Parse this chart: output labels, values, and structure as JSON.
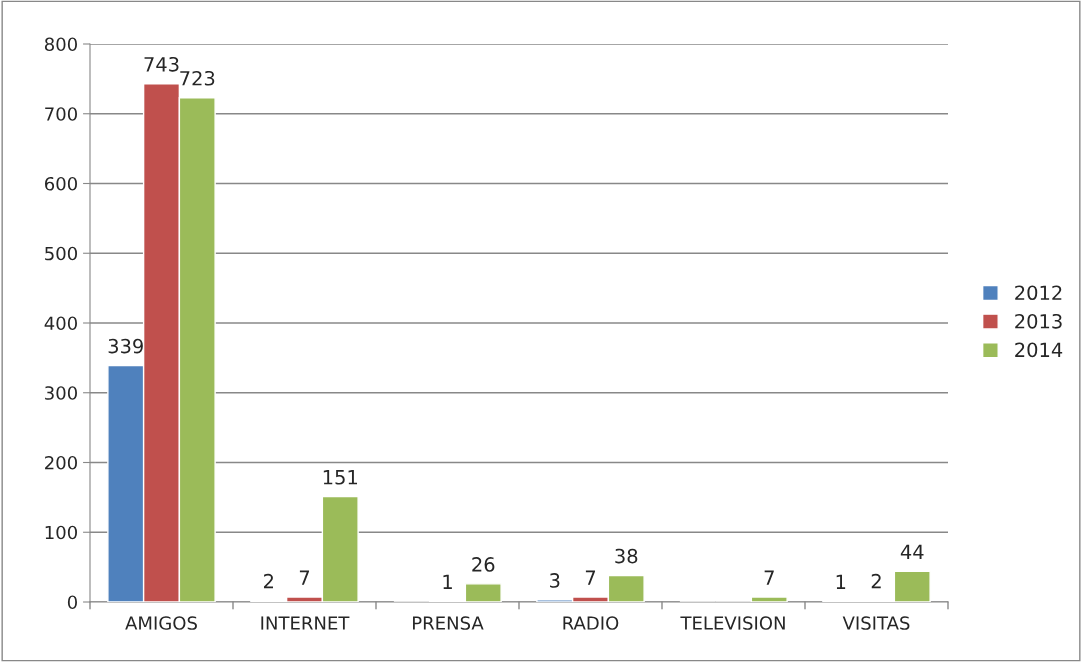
{
  "chart_data": {
    "type": "bar",
    "categories": [
      "AMIGOS",
      "INTERNET",
      "PRENSA",
      "RADIO",
      "TELEVISION",
      "VISITAS"
    ],
    "series": [
      {
        "name": "2012",
        "color": "#4f81bd",
        "values": [
          339,
          2,
          null,
          3,
          null,
          1
        ],
        "value_labels": [
          "339",
          "2",
          null,
          "3",
          null,
          "1"
        ]
      },
      {
        "name": "2013",
        "color": "#c0504d",
        "values": [
          743,
          7,
          1,
          7,
          null,
          2
        ],
        "value_labels": [
          "743",
          "7",
          "1",
          "7",
          null,
          "2"
        ]
      },
      {
        "name": "2014",
        "color": "#9bbb59",
        "values": [
          723,
          151,
          26,
          38,
          7,
          44
        ],
        "value_labels": [
          "723",
          "151",
          "26",
          "38",
          "7",
          "44"
        ]
      }
    ],
    "ylim": [
      0,
      800
    ],
    "yticks": [
      0,
      100,
      200,
      300,
      400,
      500,
      600,
      700,
      800
    ],
    "grid": "y",
    "legend": "right"
  }
}
